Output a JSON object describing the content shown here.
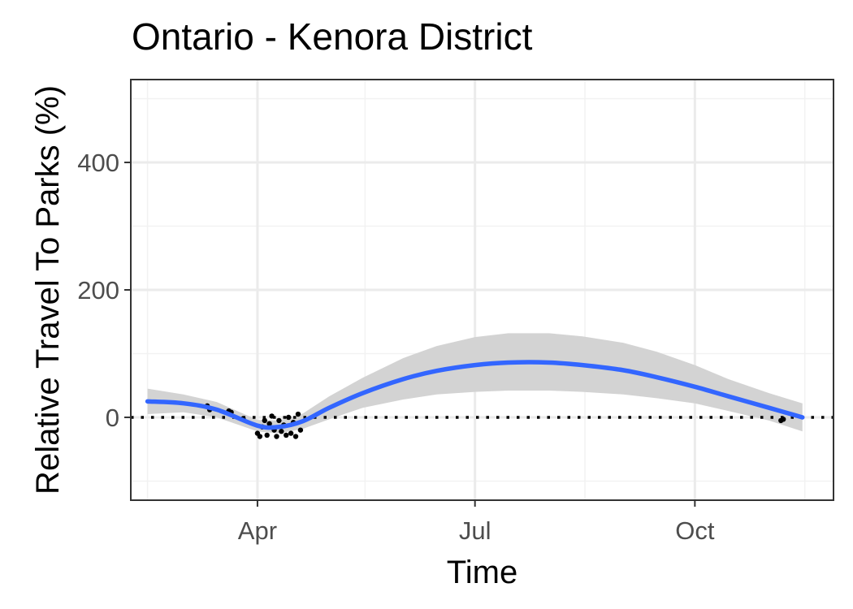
{
  "chart_data": {
    "type": "line",
    "title": "Ontario - Kenora District",
    "xlabel": "Time",
    "ylabel": "Relative Travel To Parks (%)",
    "x_ticks": [
      "Apr",
      "Jul",
      "Oct"
    ],
    "y_ticks": [
      0,
      200,
      400
    ],
    "xlim": [
      "2020-02-08",
      "2020-11-28"
    ],
    "ylim": [
      -130,
      530
    ],
    "grid": true,
    "reference_line": 0,
    "colors": {
      "smooth": "#3366ff",
      "band": "#d3d3d3",
      "points": "#000000"
    },
    "smooth": {
      "x": [
        "2020-02-15",
        "2020-03-01",
        "2020-03-15",
        "2020-04-01",
        "2020-04-10",
        "2020-04-20",
        "2020-05-01",
        "2020-05-15",
        "2020-06-01",
        "2020-06-15",
        "2020-07-01",
        "2020-07-15",
        "2020-08-01",
        "2020-08-15",
        "2020-09-01",
        "2020-09-15",
        "2020-10-01",
        "2020-10-15",
        "2020-11-01",
        "2020-11-15"
      ],
      "y": [
        25,
        22,
        12,
        -13,
        -15,
        -6,
        15,
        38,
        60,
        73,
        82,
        86,
        86,
        82,
        74,
        63,
        48,
        33,
        15,
        0
      ],
      "lower": [
        5,
        8,
        0,
        -22,
        -25,
        -18,
        -3,
        15,
        28,
        36,
        40,
        42,
        42,
        40,
        36,
        30,
        22,
        10,
        -5,
        -22
      ],
      "upper": [
        45,
        36,
        24,
        -4,
        -5,
        6,
        33,
        62,
        93,
        112,
        126,
        132,
        132,
        127,
        117,
        103,
        82,
        60,
        38,
        22
      ]
    },
    "points": {
      "x": [
        "2020-03-11",
        "2020-03-12",
        "2020-03-20",
        "2020-03-21",
        "2020-03-26",
        "2020-04-01",
        "2020-04-02",
        "2020-04-03",
        "2020-04-04",
        "2020-04-05",
        "2020-04-06",
        "2020-04-07",
        "2020-04-08",
        "2020-04-09",
        "2020-04-10",
        "2020-04-11",
        "2020-04-12",
        "2020-04-13",
        "2020-04-14",
        "2020-04-15",
        "2020-04-16",
        "2020-04-17",
        "2020-04-18",
        "2020-04-19",
        "2020-11-06",
        "2020-11-07"
      ],
      "y": [
        18,
        12,
        10,
        8,
        -2,
        -25,
        -30,
        -15,
        -5,
        -28,
        -10,
        2,
        -20,
        -30,
        -5,
        -22,
        -12,
        -28,
        0,
        -25,
        -8,
        -30,
        5,
        -20,
        -5,
        -3
      ]
    }
  }
}
